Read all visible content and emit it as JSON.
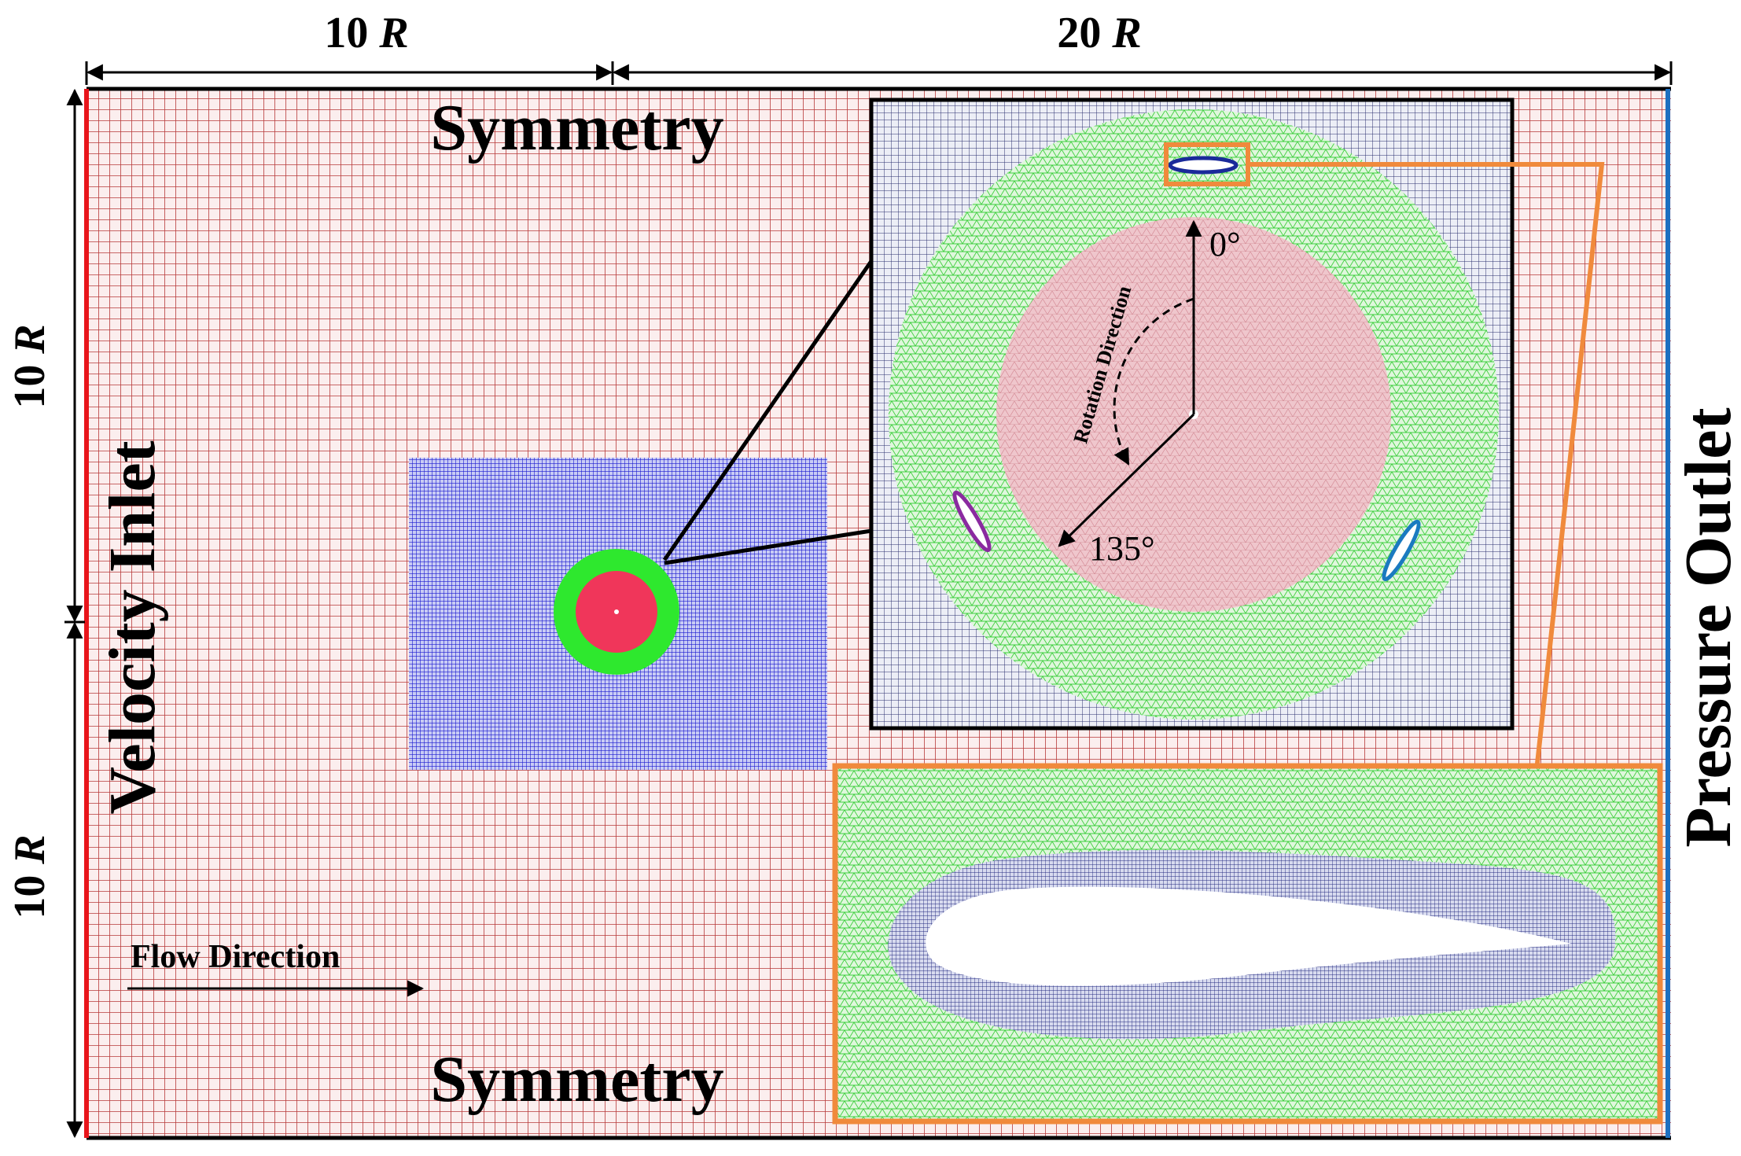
{
  "dimensions": {
    "top": [
      {
        "number": "10",
        "unit": "R"
      },
      {
        "number": "20",
        "unit": "R"
      }
    ],
    "left": [
      {
        "number": "10",
        "unit": "R"
      },
      {
        "number": "10",
        "unit": "R"
      }
    ]
  },
  "boundaries": {
    "top": "Symmetry",
    "bottom": "Symmetry",
    "inlet": "Velocity Inlet",
    "outlet": "Pressure Outlet"
  },
  "flow": "Flow Direction",
  "inset": {
    "angle_start": "0°",
    "angle_end": "135°",
    "rotation": "Rotation Direction"
  }
}
